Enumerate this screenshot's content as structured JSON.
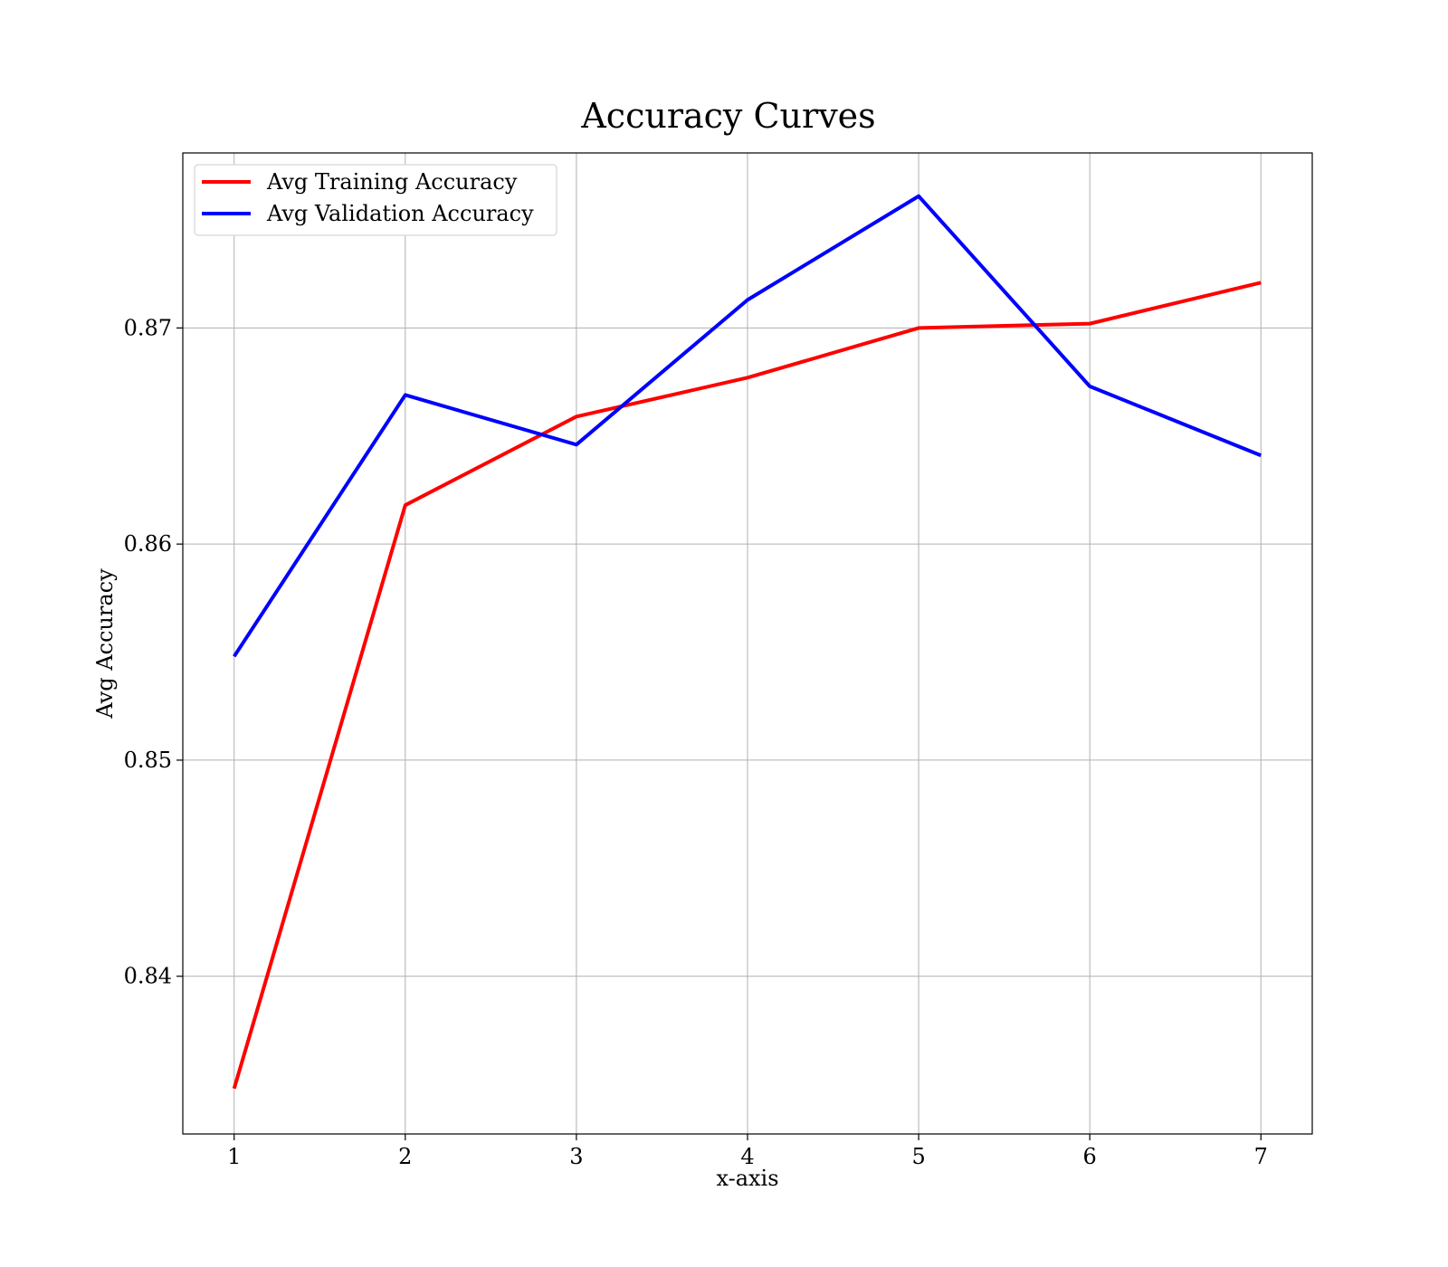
{
  "chart_data": {
    "type": "line",
    "title": "Accuracy Curves",
    "xlabel": "x-axis",
    "ylabel": "Avg Accuracy",
    "x": [
      1,
      2,
      3,
      4,
      5,
      6,
      7
    ],
    "xticks": [
      "1",
      "2",
      "3",
      "4",
      "5",
      "6",
      "7"
    ],
    "yticks": [
      "0.84",
      "0.85",
      "0.86",
      "0.87"
    ],
    "xlim": [
      0.7,
      7.3
    ],
    "ylim": [
      0.8327,
      0.8781
    ],
    "grid": true,
    "legend_position": "top-left",
    "series": [
      {
        "name": "Avg Training Accuracy",
        "color": "#ff0000",
        "values": [
          0.8348,
          0.8618,
          0.8659,
          0.8677,
          0.87,
          0.8702,
          0.8721
        ]
      },
      {
        "name": "Avg Validation Accuracy",
        "color": "#0000ff",
        "values": [
          0.8548,
          0.8669,
          0.8646,
          0.8713,
          0.8761,
          0.8673,
          0.8641
        ]
      }
    ]
  }
}
